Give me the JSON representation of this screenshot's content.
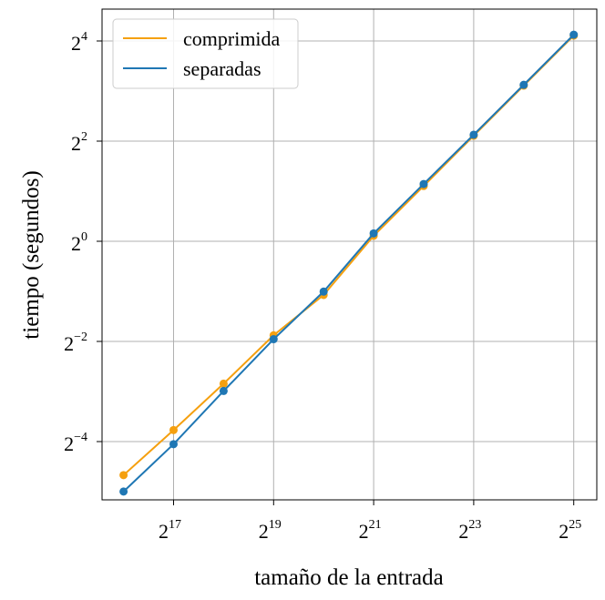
{
  "chart_data": {
    "type": "line",
    "xlabel": "tamaño de la entrada",
    "ylabel": "tiempo (segundos)",
    "x_scale": "log2",
    "y_scale": "log2",
    "grid": true,
    "legend_position": "top-left",
    "x_tick_labels": [
      {
        "base": "2",
        "exp": "17"
      },
      {
        "base": "2",
        "exp": "19"
      },
      {
        "base": "2",
        "exp": "21"
      },
      {
        "base": "2",
        "exp": "23"
      },
      {
        "base": "2",
        "exp": "25"
      }
    ],
    "y_tick_labels": [
      {
        "base": "2",
        "exp": "−4"
      },
      {
        "base": "2",
        "exp": "−2"
      },
      {
        "base": "2",
        "exp": "0"
      },
      {
        "base": "2",
        "exp": "2"
      },
      {
        "base": "2",
        "exp": "4"
      }
    ],
    "x": [
      65536,
      131072,
      262144,
      524288,
      1048576,
      2097152,
      4194304,
      8388608,
      16777216,
      33554432
    ],
    "series": [
      {
        "name": "comprimida",
        "color": "#f5a00f",
        "values": [
          0.0393,
          0.0733,
          0.1393,
          0.2722,
          0.4757,
          1.0792,
          2.1493,
          4.3114,
          8.6225,
          17.24
        ]
      },
      {
        "name": "separadas",
        "color": "#1f77b4",
        "values": [
          0.0313,
          0.0603,
          0.1259,
          0.2578,
          0.4983,
          1.1154,
          2.2104,
          4.3711,
          8.7227,
          17.45
        ]
      }
    ]
  }
}
